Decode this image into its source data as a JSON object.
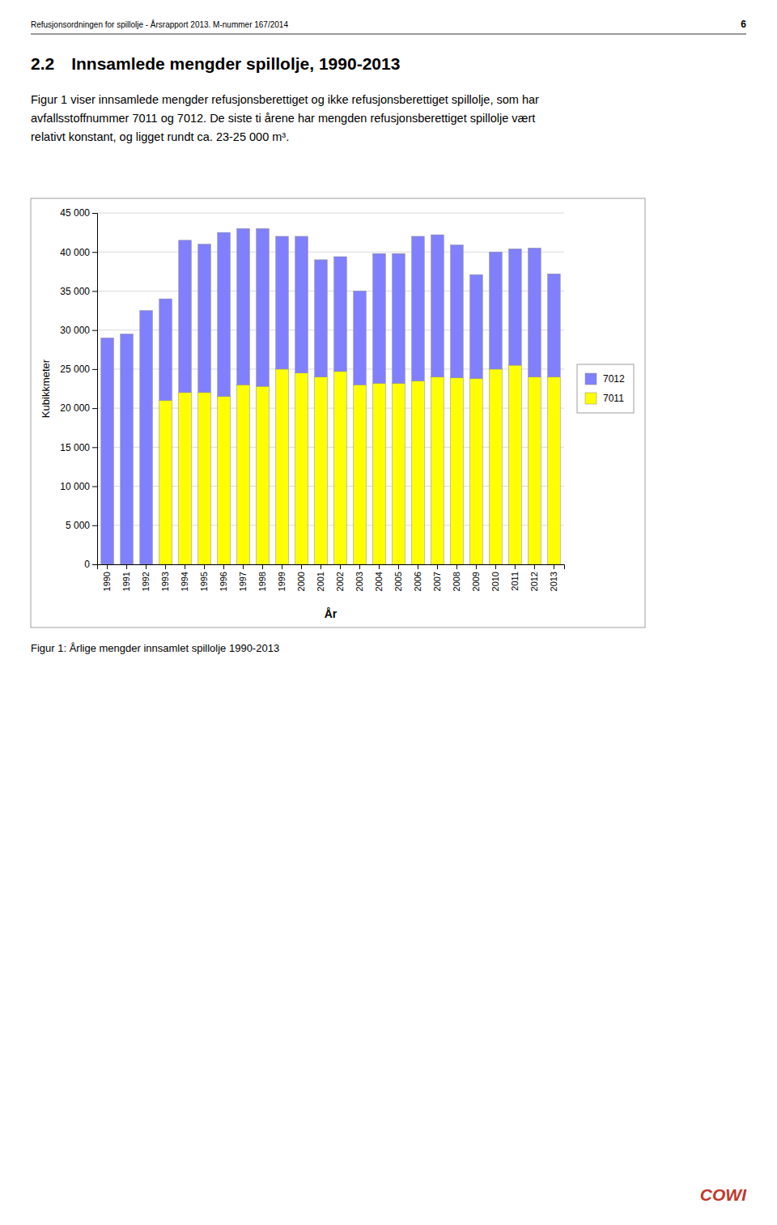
{
  "header": "Refusjonsordningen for spillolje - Årsrapport 2013. M-nummer 167/2014",
  "page_number": "6",
  "heading": "2.2 Innsamlede mengder spillolje, 1990-2013",
  "body": [
    "Figur 1 viser innsamlede mengder refusjonsberettiget og ikke refusjonsberettiget spillolje, som har",
    "avfallsstoffnummer 7011 og 7012. De siste ti årene har mengden refusjonsberettiget spillolje vært",
    "relativt konstant, og ligget rundt ca. 23-25 000 m³."
  ],
  "caption": "Figur 1: Årlige mengder innsamlet spillolje 1990-2013",
  "logo": {
    "text": "COWI",
    "color": "#C0392B"
  },
  "chart_data": {
    "type": "bar",
    "stacked": true,
    "xlabel": "År",
    "ylabel": "Kubikkmeter",
    "categories": [
      "1990",
      "1991",
      "1992",
      "1993",
      "1994",
      "1995",
      "1996",
      "1997",
      "1998",
      "1999",
      "2000",
      "2001",
      "2002",
      "2003",
      "2004",
      "2005",
      "2006",
      "2007",
      "2008",
      "2009",
      "2010",
      "2011",
      "2012",
      "2013"
    ],
    "series": [
      {
        "name": "7011",
        "color": "#FFFF00",
        "values": [
          0,
          0,
          0,
          21000,
          22000,
          22000,
          21500,
          23000,
          22800,
          25000,
          24500,
          24000,
          24700,
          23000,
          23200,
          23200,
          23500,
          24000,
          23900,
          23800,
          25000,
          25500,
          24000,
          24000
        ]
      },
      {
        "name": "7012",
        "color": "#8080FF",
        "values": [
          29000,
          29500,
          32500,
          13000,
          19500,
          19000,
          21000,
          20000,
          20200,
          17000,
          17500,
          15000,
          14700,
          12000,
          16600,
          16600,
          18500,
          18200,
          17000,
          13300,
          15000,
          14900,
          16500,
          13200
        ]
      }
    ],
    "ylim": [
      0,
      45000
    ],
    "yticks": [
      0,
      {
        "value": 5000,
        "label": "5 000"
      },
      {
        "value": 10000,
        "label": "10 000"
      },
      {
        "value": 15000,
        "label": "15 000"
      },
      {
        "value": 20000,
        "label": "20 000"
      },
      {
        "value": 25000,
        "label": "25 000"
      },
      {
        "value": 30000,
        "label": "30 000"
      },
      {
        "value": 35000,
        "label": "35 000"
      },
      {
        "value": 40000,
        "label": "40 000"
      },
      {
        "value": 45000,
        "label": "45 000"
      }
    ],
    "grid": true,
    "legend": "right"
  }
}
